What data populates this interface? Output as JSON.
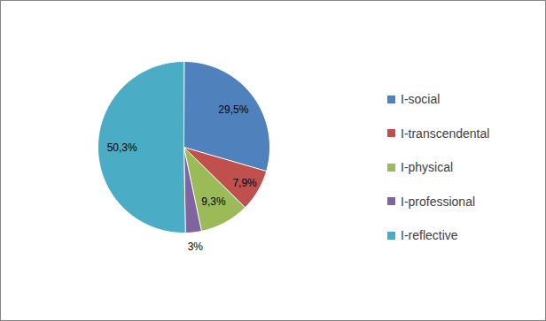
{
  "chart_data": {
    "type": "pie",
    "categories": [
      "I-social",
      "I-transcendental",
      "I-physical",
      "I-professional",
      "I-reflective"
    ],
    "values": [
      29.5,
      7.9,
      9.3,
      3,
      50.3
    ],
    "value_labels": [
      "29,5%",
      "7,9%",
      "9,3%",
      "3%",
      "50,3%"
    ],
    "colors": [
      "#4f81bd",
      "#c0504d",
      "#9bbb59",
      "#8064a2",
      "#4bacc6"
    ],
    "data_labels": true,
    "legend": "right"
  }
}
